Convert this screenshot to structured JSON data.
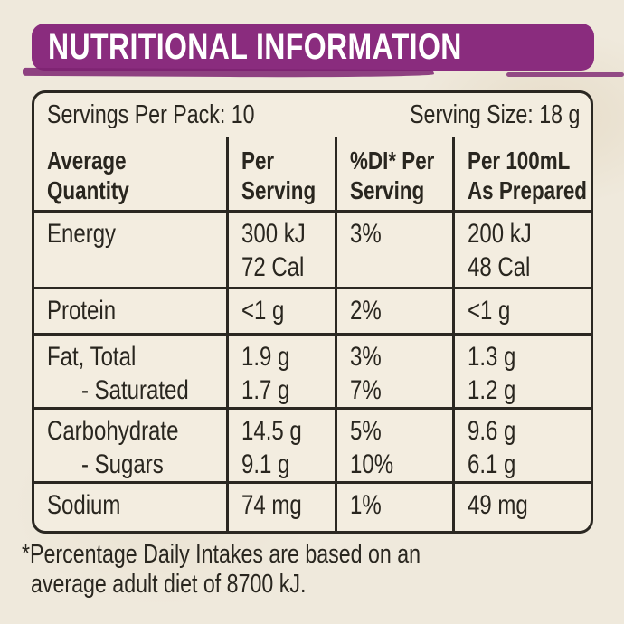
{
  "banner": {
    "title": "NUTRITIONAL INFORMATION",
    "background_color": "#8a2c7e",
    "text_color": "#ffffff"
  },
  "pack_info": {
    "servings_per_pack": "Servings Per Pack: 10",
    "serving_size": "Serving Size: 18 g"
  },
  "table": {
    "headers": [
      {
        "line1": "Average",
        "line2": "Quantity"
      },
      {
        "line1": "Per",
        "line2": "Serving"
      },
      {
        "line1": "%DI* Per",
        "line2": "Serving"
      },
      {
        "line1": "Per 100mL",
        "line2": "As Prepared"
      }
    ],
    "rows": [
      {
        "nutrient": "Energy",
        "nutrient2": "",
        "per_serving": "300 kJ",
        "per_serving2": "72 Cal",
        "di": "3%",
        "di2": "",
        "per_100ml": "200 kJ",
        "per_100ml2": "48 Cal"
      },
      {
        "nutrient": "Protein",
        "per_serving": "<1 g",
        "di": "2%",
        "per_100ml": "<1 g"
      },
      {
        "nutrient": "Fat, Total",
        "nutrient2": "- Saturated",
        "per_serving": "1.9 g",
        "per_serving2": "1.7 g",
        "di": "3%",
        "di2": "7%",
        "per_100ml": "1.3 g",
        "per_100ml2": "1.2 g"
      },
      {
        "nutrient": "Carbohydrate",
        "nutrient2": "- Sugars",
        "per_serving": "14.5 g",
        "per_serving2": "9.1 g",
        "di": "5%",
        "di2": "10%",
        "per_100ml": "9.6 g",
        "per_100ml2": "6.1 g"
      },
      {
        "nutrient": "Sodium",
        "per_serving": "74 mg",
        "di": "1%",
        "per_100ml": "49 mg"
      }
    ]
  },
  "footnote": {
    "line1": "*Percentage Daily Intakes are based on an",
    "line2": "average adult diet of 8700 kJ."
  }
}
